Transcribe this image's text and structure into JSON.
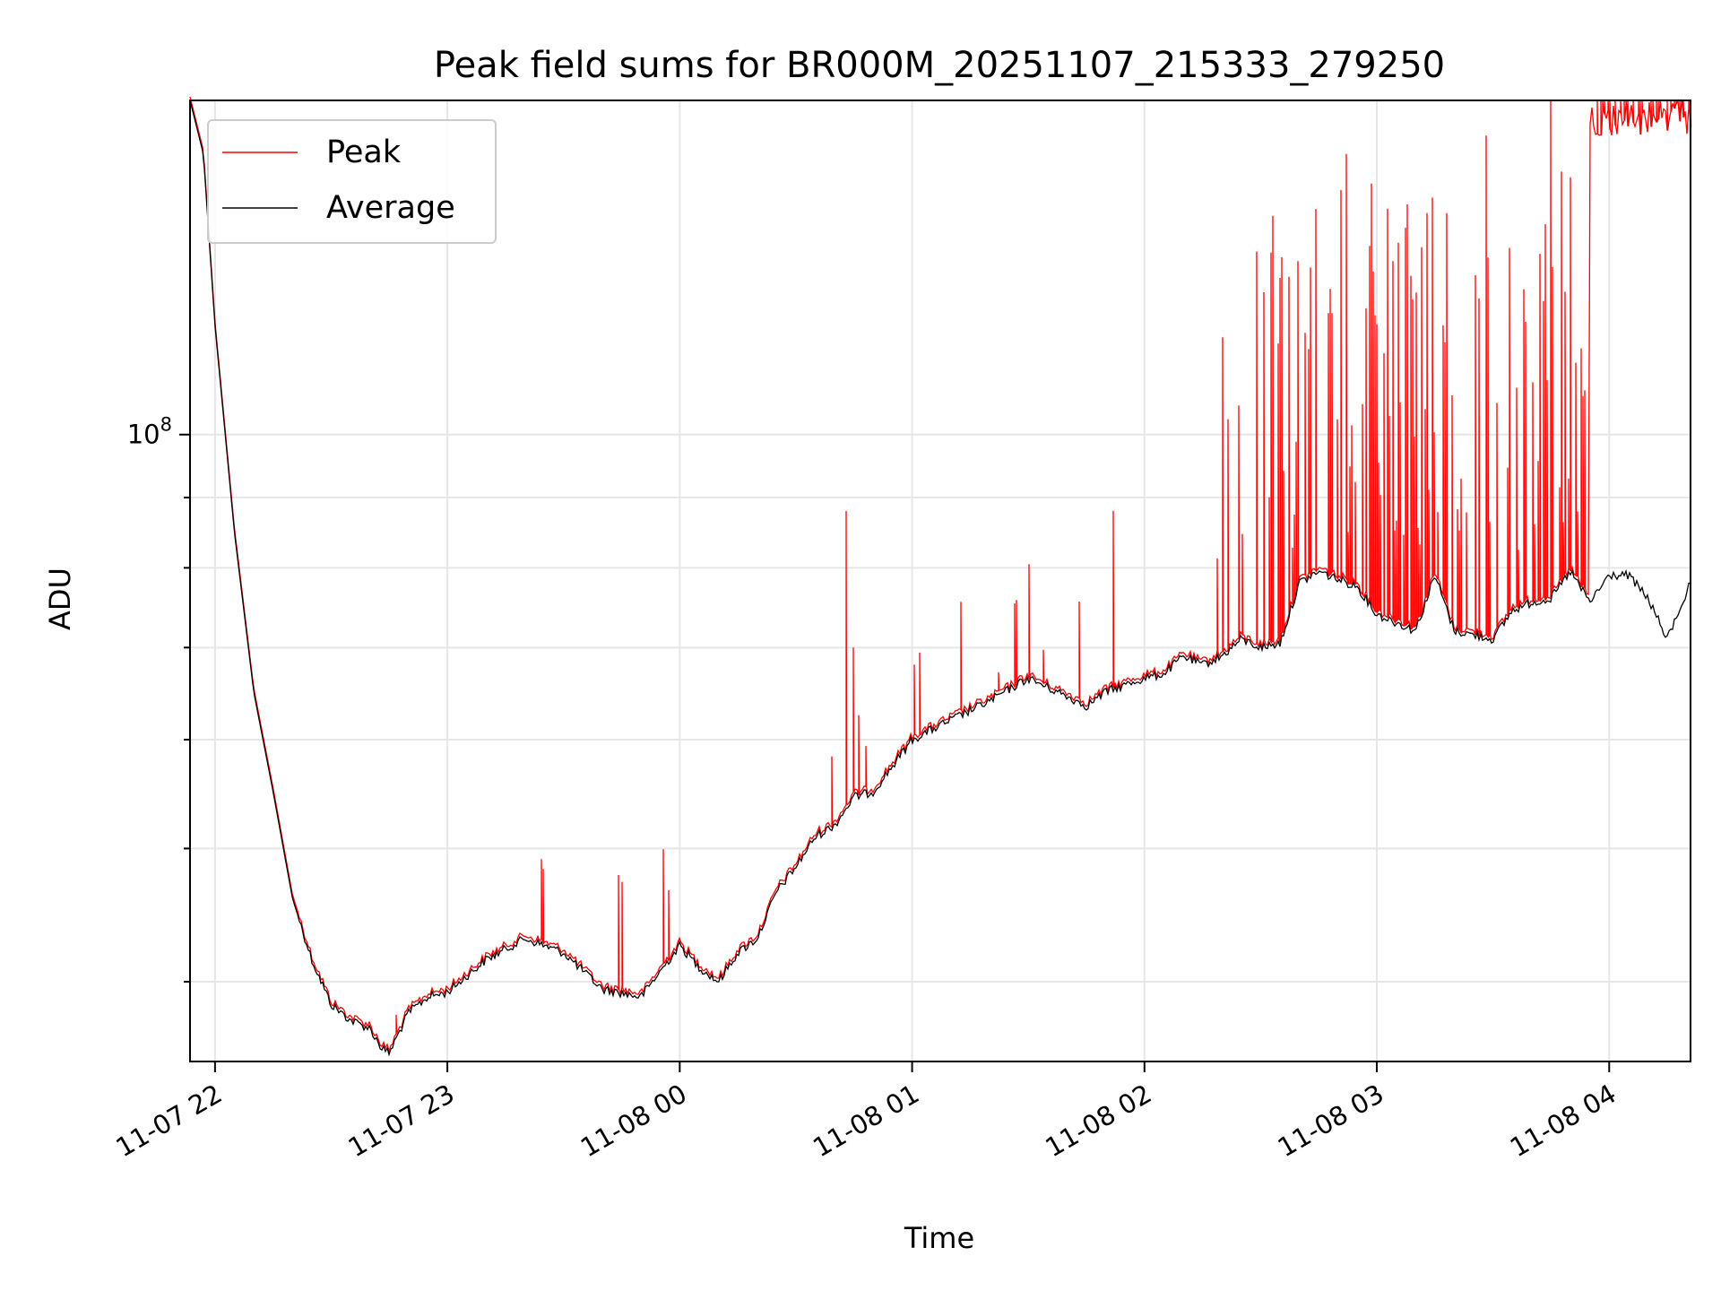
{
  "chart_data": {
    "type": "line",
    "title": "Peak field sums for BR000M_20251107_215333_279250",
    "xlabel": "Time",
    "ylabel": "ADU",
    "yscale": "log",
    "xlim": [
      "2025-11-07T21:53:33",
      "2025-11-08T04:21:00"
    ],
    "ylim": [
      35000000,
      175000000
    ],
    "grid": true,
    "legend_position": "top-left",
    "x_ticks": [
      "11-07 22",
      "11-07 23",
      "11-08 00",
      "11-08 01",
      "11-08 02",
      "11-08 03",
      "11-08 04"
    ],
    "y_major_tick": "10^8",
    "average_color": "#000000",
    "peak_color": "#ff0000",
    "series": [
      {
        "name": "Peak",
        "color": "#ff0000",
        "note": "Peak tracks Average with frequent upward spikes, dense after 02:20 and saturating the top after 03:55",
        "x": [
          "2025-11-08T00:43:00",
          "2025-11-08T00:45:00",
          "2025-11-08T01:52:00",
          "2025-11-08T02:35:00",
          "2025-11-08T02:52:00",
          "2025-11-08T03:28:00",
          "2025-11-08T03:45:00"
        ],
        "y": [
          88000000,
          70000000,
          88000000,
          130000000,
          160000000,
          165000000,
          175000000
        ]
      },
      {
        "name": "Average",
        "color": "#000000",
        "x": [
          "2025-11-07T21:53:33",
          "2025-11-07T21:57:00",
          "2025-11-07T22:00:00",
          "2025-11-07T22:05:00",
          "2025-11-07T22:10:00",
          "2025-11-07T22:15:00",
          "2025-11-07T22:20:00",
          "2025-11-07T22:25:00",
          "2025-11-07T22:30:00",
          "2025-11-07T22:35:00",
          "2025-11-07T22:40:00",
          "2025-11-07T22:43:00",
          "2025-11-07T22:45:00",
          "2025-11-07T22:50:00",
          "2025-11-07T22:55:00",
          "2025-11-07T23:00:00",
          "2025-11-07T23:10:00",
          "2025-11-07T23:20:00",
          "2025-11-07T23:30:00",
          "2025-11-07T23:40:00",
          "2025-11-07T23:50:00",
          "2025-11-08T00:00:00",
          "2025-11-08T00:05:00",
          "2025-11-08T00:10:00",
          "2025-11-08T00:15:00",
          "2025-11-08T00:20:00",
          "2025-11-08T00:25:00",
          "2025-11-08T00:30:00",
          "2025-11-08T00:35:00",
          "2025-11-08T00:40:00",
          "2025-11-08T00:45:00",
          "2025-11-08T00:50:00",
          "2025-11-08T01:00:00",
          "2025-11-08T01:10:00",
          "2025-11-08T01:20:00",
          "2025-11-08T01:30:00",
          "2025-11-08T01:40:00",
          "2025-11-08T01:45:00",
          "2025-11-08T01:50:00",
          "2025-11-08T02:00:00",
          "2025-11-08T02:05:00",
          "2025-11-08T02:10:00",
          "2025-11-08T02:15:00",
          "2025-11-08T02:20:00",
          "2025-11-08T02:25:00",
          "2025-11-08T02:30:00",
          "2025-11-08T02:35:00",
          "2025-11-08T02:40:00",
          "2025-11-08T02:45:00",
          "2025-11-08T02:50:00",
          "2025-11-08T02:55:00",
          "2025-11-08T03:00:00",
          "2025-11-08T03:05:00",
          "2025-11-08T03:10:00",
          "2025-11-08T03:15:00",
          "2025-11-08T03:20:00",
          "2025-11-08T03:25:00",
          "2025-11-08T03:30:00",
          "2025-11-08T03:35:00",
          "2025-11-08T03:40:00",
          "2025-11-08T03:45:00",
          "2025-11-08T03:50:00",
          "2025-11-08T03:55:00",
          "2025-11-08T04:00:00",
          "2025-11-08T04:05:00",
          "2025-11-08T04:10:00",
          "2025-11-08T04:15:00",
          "2025-11-08T04:21:00"
        ],
        "y": [
          175000000,
          160000000,
          120000000,
          85000000,
          65000000,
          55000000,
          46000000,
          41500000,
          38500000,
          37500000,
          37000000,
          35800000,
          35500000,
          38000000,
          39000000,
          39300000,
          41500000,
          43000000,
          42000000,
          39500000,
          39000000,
          42500000,
          41000000,
          40000000,
          42000000,
          43000000,
          46500000,
          48500000,
          51000000,
          52000000,
          54500000,
          55000000,
          60000000,
          62000000,
          64000000,
          66500000,
          64500000,
          63500000,
          65000000,
          66500000,
          67000000,
          69000000,
          68000000,
          69000000,
          71000000,
          70000000,
          70500000,
          78000000,
          79500000,
          78500000,
          77500000,
          74000000,
          73000000,
          72000000,
          79000000,
          72000000,
          71500000,
          71000000,
          74500000,
          75500000,
          76000000,
          79500000,
          75500000,
          79000000,
          79000000,
          76000000,
          71000000,
          78000000
        ]
      }
    ]
  }
}
